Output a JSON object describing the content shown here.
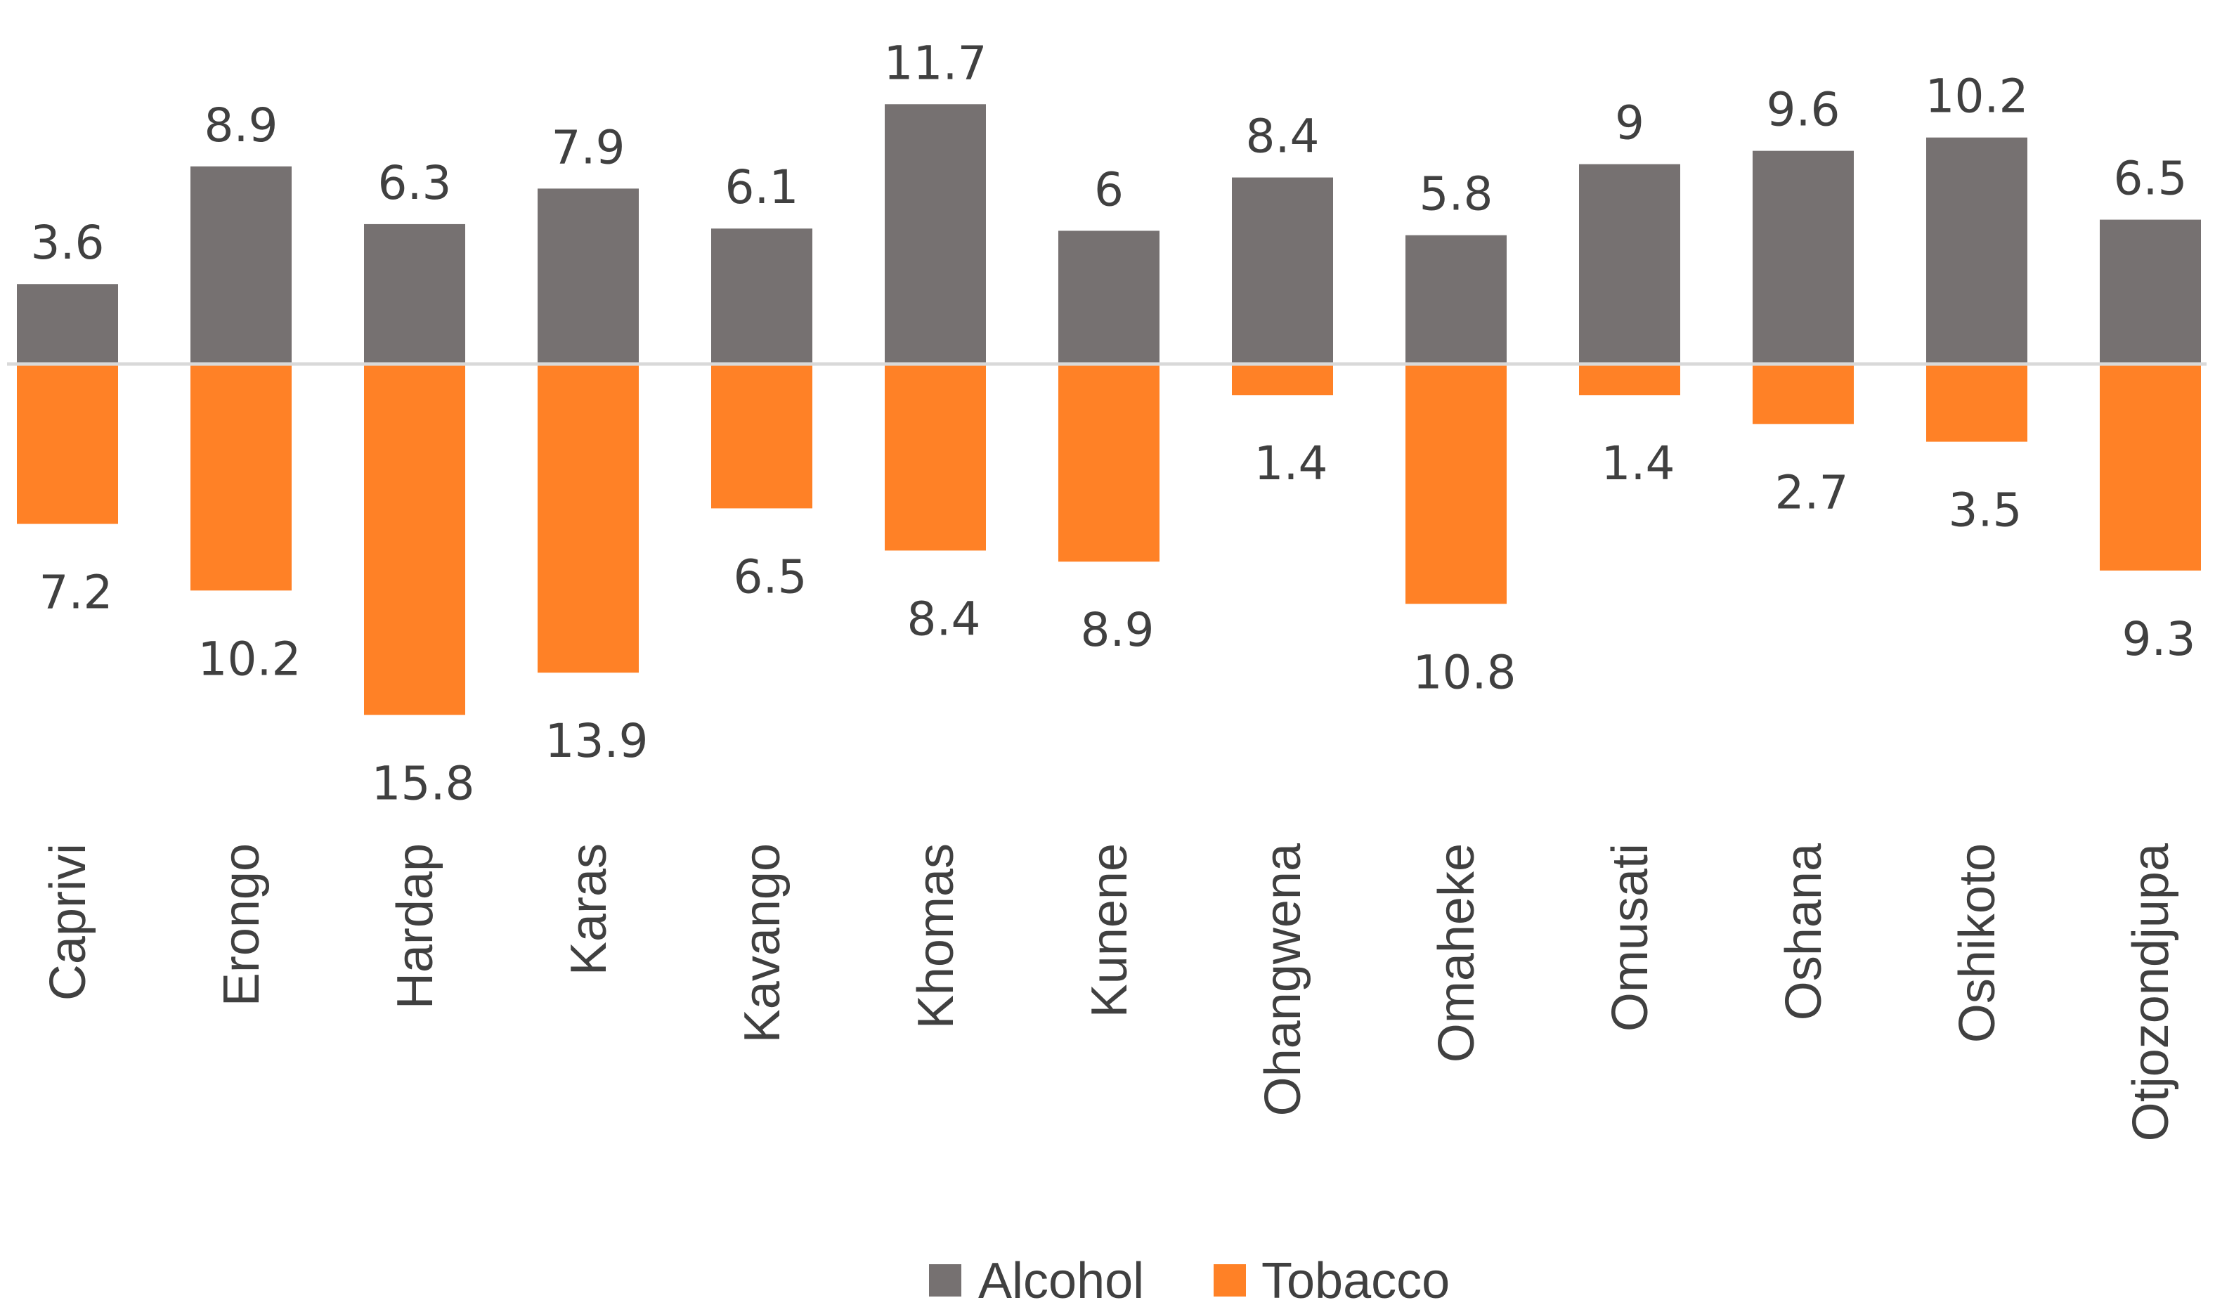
{
  "chart_data": {
    "type": "bar",
    "title": "",
    "xlabel": "",
    "ylabel": "",
    "categories": [
      "Caprivi",
      "Erongo",
      "Hardap",
      "Karas",
      "Kavango",
      "Khomas",
      "Kunene",
      "Ohangwena",
      "Omaheke",
      "Omusati",
      "Oshana",
      "Oshikoto",
      "Otjozondjupa"
    ],
    "series": [
      {
        "name": "Alcohol",
        "color": "#767171",
        "direction": "up",
        "values": [
          3.6,
          8.9,
          6.3,
          7.9,
          6.1,
          11.7,
          6,
          8.4,
          5.8,
          9,
          9.6,
          10.2,
          6.5
        ]
      },
      {
        "name": "Tobacco",
        "color": "#FF8126",
        "direction": "down",
        "values": [
          7.2,
          10.2,
          15.8,
          13.9,
          6.5,
          8.4,
          8.9,
          1.4,
          10.8,
          1.4,
          2.7,
          3.5,
          9.3
        ]
      }
    ],
    "legend_position": "bottom",
    "axis_color": "#D9D9D9",
    "grid": false
  }
}
